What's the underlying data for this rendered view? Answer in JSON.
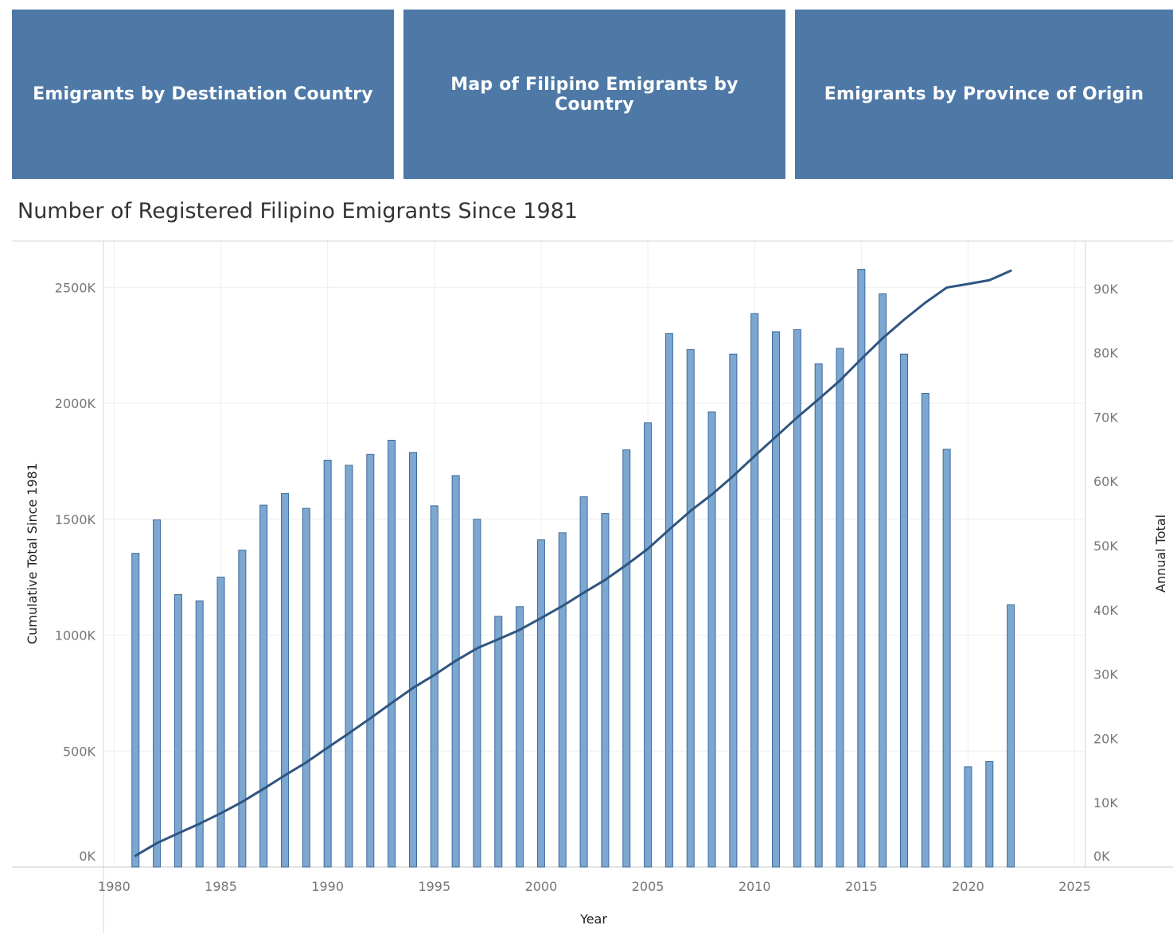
{
  "nav": {
    "buttons": [
      {
        "label": "Emigrants by Destination Country"
      },
      {
        "label": "Map of Filipino Emigrants by Country"
      },
      {
        "label": "Emigrants by Province of Origin"
      }
    ]
  },
  "colors": {
    "nav_button": "#4e79a7",
    "bar_fill": "#7ba7d0",
    "bar_stroke": "#3f6a99",
    "line": "#2f5580"
  },
  "chart_data": {
    "type": "bar",
    "title": "Number of Registered Filipino Emigrants Since 1981",
    "xlabel": "Year",
    "ylabel_left": "Cumulative Total Since 1981",
    "ylabel_right": "Annual Total",
    "x_range": [
      1979.5,
      2025.5
    ],
    "x_ticks": [
      1980,
      1985,
      1990,
      1995,
      2000,
      2005,
      2010,
      2015,
      2020,
      2025
    ],
    "x_tick_labels": [
      "1980",
      "1985",
      "1990",
      "1995",
      "2000",
      "2005",
      "2010",
      "2015",
      "2020",
      "2025"
    ],
    "y_left_range": [
      0,
      2700000
    ],
    "y_left_ticks": [
      0,
      500000,
      1000000,
      1500000,
      2000000,
      2500000
    ],
    "y_left_tick_labels": [
      "0K",
      "500K",
      "1000K",
      "1500K",
      "2000K",
      "2500K"
    ],
    "y_right_range": [
      0,
      97400
    ],
    "y_right_ticks": [
      0,
      10000,
      20000,
      30000,
      40000,
      50000,
      60000,
      70000,
      80000,
      90000
    ],
    "y_right_tick_labels": [
      "0K",
      "10K",
      "20K",
      "30K",
      "40K",
      "50K",
      "60K",
      "70K",
      "80K",
      "90K"
    ],
    "grid": true,
    "years": [
      1981,
      1982,
      1983,
      1984,
      1985,
      1986,
      1987,
      1988,
      1989,
      1990,
      1991,
      1992,
      1993,
      1994,
      1995,
      1996,
      1997,
      1998,
      1999,
      2000,
      2001,
      2002,
      2003,
      2004,
      2005,
      2006,
      2007,
      2008,
      2009,
      2010,
      2011,
      2012,
      2013,
      2014,
      2015,
      2016,
      2017,
      2018,
      2019,
      2020,
      2021,
      2022
    ],
    "series": [
      {
        "name": "Annual Total",
        "type": "bar",
        "axis": "right",
        "values": [
          48800,
          54000,
          42400,
          41400,
          45100,
          49300,
          56300,
          58100,
          55800,
          63300,
          62500,
          64200,
          66400,
          64500,
          56200,
          60900,
          54100,
          39000,
          40500,
          50900,
          52000,
          57600,
          55000,
          64900,
          69100,
          83000,
          80500,
          70800,
          79800,
          86100,
          83300,
          83600,
          78300,
          80700,
          93000,
          89200,
          79800,
          73700,
          65000,
          15600,
          16400,
          40800
        ]
      },
      {
        "name": "Cumulative Total Since 1981",
        "type": "line",
        "axis": "left",
        "values": [
          48800,
          102800,
          145200,
          186600,
          231700,
          281000,
          337300,
          395400,
          451200,
          514500,
          577000,
          641200,
          707600,
          772100,
          828300,
          889200,
          943300,
          982300,
          1022800,
          1073700,
          1125700,
          1183300,
          1238300,
          1303200,
          1372300,
          1455300,
          1535800,
          1606600,
          1686400,
          1772500,
          1855800,
          1939400,
          2017700,
          2098400,
          2191400,
          2280600,
          2360400,
          2434100,
          2499100,
          2514700,
          2531100,
          2571900
        ]
      }
    ]
  }
}
